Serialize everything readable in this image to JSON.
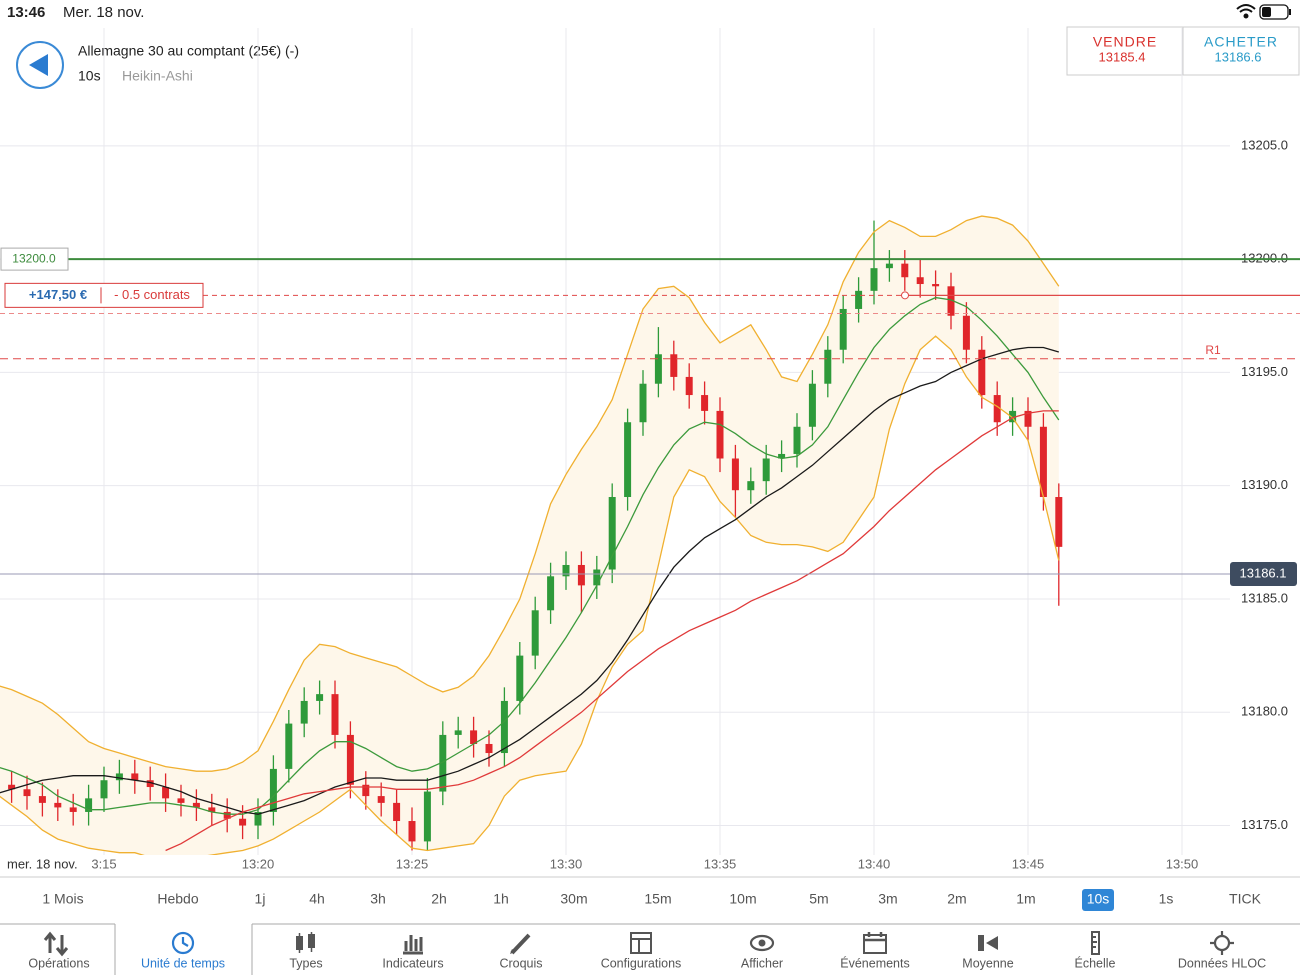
{
  "status_bar": {
    "time": "13:46",
    "date": "Mer. 18 nov."
  },
  "header": {
    "instrument": "Allemagne 30 au comptant (25€) (-)",
    "interval": "10s",
    "chart_style": "Heikin-Ashi"
  },
  "trade_buttons": {
    "sell": {
      "label": "VENDRE",
      "price": "13185.4"
    },
    "buy": {
      "label": "ACHETER",
      "price": "13186.6"
    }
  },
  "chart_data": {
    "type": "candlestick",
    "date_label": "mer. 18 nov.",
    "categories": [
      null,
      null,
      null,
      null,
      null,
      null,
      null,
      "3:15",
      null,
      null,
      null,
      null,
      null,
      null,
      null,
      null,
      null,
      "13:20",
      null,
      null,
      null,
      null,
      null,
      null,
      null,
      null,
      null,
      "13:25",
      null,
      null,
      null,
      null,
      null,
      null,
      null,
      null,
      null,
      "13:30",
      null,
      null,
      null,
      null,
      null,
      null,
      null,
      null,
      null,
      "13:35",
      null,
      null,
      null,
      null,
      null,
      null,
      null,
      null,
      null,
      "13:40",
      null,
      null,
      null,
      null,
      null,
      null,
      null,
      null,
      null,
      "13:45",
      null,
      null,
      null,
      null,
      null,
      null,
      null,
      null,
      null,
      "13:50",
      null,
      null
    ],
    "open": [
      13177.0,
      13176.8,
      13176.6,
      13176.3,
      13176.0,
      13175.8,
      13175.6,
      13176.2,
      13177.0,
      13177.3,
      13177.0,
      13176.7,
      13176.2,
      13176.0,
      13175.8,
      13175.6,
      13175.3,
      13175.0,
      13175.6,
      13177.5,
      13179.5,
      13180.5,
      13180.8,
      13179.0,
      13176.8,
      13176.3,
      13176.0,
      13175.2,
      13174.3,
      13176.5,
      13179.0,
      13179.2,
      13178.6,
      13178.2,
      13180.5,
      13182.5,
      13184.5,
      13186.0,
      13186.5,
      13185.6,
      13186.3,
      13189.5,
      13192.8,
      13194.5,
      13195.8,
      13194.8,
      13194.0,
      13193.3,
      13191.2,
      13189.8,
      13190.2,
      13191.2,
      13191.4,
      13192.6,
      13194.5,
      13196.0,
      13197.8,
      13198.6,
      13199.6,
      13199.8,
      13199.2,
      13198.9,
      13198.8,
      13197.5,
      13196.0,
      13194.0,
      13192.8,
      13193.3,
      13192.6,
      13189.5,
      null,
      null,
      null,
      null,
      null,
      null,
      null,
      null,
      null,
      null
    ],
    "high": [
      13177.6,
      13177.4,
      13177.2,
      13176.9,
      13176.6,
      13176.4,
      13176.8,
      13177.6,
      13177.9,
      13177.9,
      13177.6,
      13177.3,
      13176.8,
      13176.6,
      13176.4,
      13176.2,
      13175.9,
      13176.2,
      13178.1,
      13180.1,
      13181.1,
      13181.4,
      13181.4,
      13179.6,
      13177.4,
      13176.9,
      13176.6,
      13175.8,
      13177.1,
      13179.6,
      13179.8,
      13179.8,
      13179.2,
      13181.1,
      13183.1,
      13185.1,
      13186.6,
      13187.1,
      13187.1,
      13186.9,
      13190.1,
      13193.4,
      13195.1,
      13197.0,
      13196.4,
      13195.4,
      13194.6,
      13193.9,
      13191.8,
      13190.8,
      13191.8,
      13192.0,
      13193.2,
      13195.1,
      13196.6,
      13198.4,
      13199.2,
      13201.7,
      13200.4,
      13200.4,
      13200.0,
      13199.5,
      13199.4,
      13198.1,
      13196.6,
      13194.6,
      13193.9,
      13193.9,
      13193.2,
      13190.1,
      null,
      null,
      null,
      null,
      null,
      null,
      null,
      null,
      null,
      null
    ],
    "low": [
      13176.2,
      13176.0,
      13175.7,
      13175.4,
      13175.2,
      13175.0,
      13175.0,
      13175.6,
      13176.4,
      13176.4,
      13176.1,
      13175.6,
      13175.4,
      13175.2,
      13175.0,
      13174.7,
      13174.4,
      13174.4,
      13175.0,
      13176.9,
      13178.9,
      13179.9,
      13178.4,
      13176.2,
      13175.7,
      13175.4,
      13174.6,
      13173.9,
      13173.9,
      13175.9,
      13178.4,
      13178.0,
      13177.6,
      13177.6,
      13179.9,
      13181.9,
      13183.9,
      13185.4,
      13184.4,
      13185.0,
      13185.7,
      13188.9,
      13192.2,
      13193.9,
      13194.2,
      13193.4,
      13192.7,
      13190.6,
      13188.6,
      13189.2,
      13189.6,
      13190.6,
      13190.8,
      13192.0,
      13193.9,
      13195.4,
      13197.2,
      13198.0,
      13199.0,
      13198.6,
      13198.3,
      13198.2,
      13196.9,
      13195.4,
      13193.4,
      13192.2,
      13192.2,
      13192.0,
      13188.9,
      13184.7,
      null,
      null,
      null,
      null,
      null,
      null,
      null,
      null,
      null,
      null
    ],
    "close": [
      13176.8,
      13176.6,
      13176.3,
      13176.0,
      13175.8,
      13175.6,
      13176.2,
      13177.0,
      13177.3,
      13177.0,
      13176.7,
      13176.2,
      13176.0,
      13175.8,
      13175.6,
      13175.3,
      13175.0,
      13175.6,
      13177.5,
      13179.5,
      13180.5,
      13180.8,
      13179.0,
      13176.8,
      13176.3,
      13176.0,
      13175.2,
      13174.3,
      13176.5,
      13179.0,
      13179.2,
      13178.6,
      13178.2,
      13180.5,
      13182.5,
      13184.5,
      13186.0,
      13186.5,
      13185.6,
      13186.3,
      13189.5,
      13192.8,
      13194.5,
      13195.8,
      13194.8,
      13194.0,
      13193.3,
      13191.2,
      13189.8,
      13190.2,
      13191.2,
      13191.4,
      13192.6,
      13194.5,
      13196.0,
      13197.8,
      13198.6,
      13199.6,
      13199.8,
      13199.2,
      13198.9,
      13198.8,
      13197.5,
      13196.0,
      13194.0,
      13192.8,
      13193.3,
      13192.6,
      13189.5,
      13187.3,
      null,
      null,
      null,
      null,
      null,
      null,
      null,
      null,
      null,
      null
    ],
    "up_color": "#2e9a3a",
    "down_color": "#e0262b",
    "band_fill": "#fef7ea",
    "series": [
      {
        "color": "#f0b030",
        "values": [
          13181.2,
          13181.0,
          13180.7,
          13180.4,
          13179.9,
          13179.3,
          13178.7,
          13178.4,
          13178.2,
          13178.0,
          13177.8,
          13177.6,
          13177.5,
          13177.4,
          13177.4,
          13177.5,
          13177.8,
          13178.3,
          13179.6,
          13181.0,
          13182.3,
          13183.0,
          13182.9,
          13182.6,
          13182.4,
          13182.2,
          13182.0,
          13181.6,
          13181.2,
          13180.9,
          13181.1,
          13181.6,
          13182.5,
          13183.7,
          13185.0,
          13187.0,
          13189.2,
          13190.5,
          13191.6,
          13192.6,
          13193.8,
          13195.8,
          13197.8,
          13198.7,
          13198.8,
          13198.3,
          13197.2,
          13196.3,
          13196.7,
          13197.1,
          13196.0,
          13194.8,
          13194.6,
          13195.8,
          13197.1,
          13199.0,
          13200.3,
          13201.2,
          13201.7,
          13201.4,
          13201.0,
          13201.0,
          13201.3,
          13201.7,
          13201.9,
          13201.8,
          13201.5,
          13200.8,
          13199.8,
          13198.8,
          null,
          null,
          null,
          null,
          null,
          null,
          null,
          null,
          null,
          null
        ]
      },
      {
        "color": "#f0b030",
        "values": [
          13176.4,
          13175.9,
          13175.4,
          13174.8,
          13174.4,
          13174.2,
          13174.0,
          13173.9,
          13173.8,
          13173.8,
          13173.6,
          13173.5,
          13173.5,
          13173.6,
          13173.7,
          13173.8,
          13173.9,
          13174.1,
          13174.4,
          13174.8,
          13175.2,
          13175.6,
          13176.1,
          13176.6,
          13175.9,
          13175.2,
          13174.6,
          13174.0,
          13173.9,
          13174.0,
          13174.1,
          13174.2,
          13175.0,
          13176.3,
          13177.0,
          13177.2,
          13177.3,
          13177.4,
          13178.6,
          13180.5,
          13182.0,
          13183.0,
          13183.6,
          13186.5,
          13189.5,
          13190.7,
          13190.4,
          13189.3,
          13188.6,
          13187.8,
          13187.5,
          13187.4,
          13187.4,
          13187.3,
          13187.1,
          13187.5,
          13188.5,
          13189.5,
          13192.5,
          13194.5,
          13196.0,
          13196.6,
          13196.0,
          13194.8,
          13193.9,
          13193.5,
          13193.0,
          13192.0,
          13189.5,
          13186.7,
          null,
          null,
          null,
          null,
          null,
          null,
          null,
          null,
          null,
          null
        ]
      },
      {
        "color": "#3c9a3c",
        "values": [
          13177.6,
          13177.4,
          13177.1,
          13176.8,
          13176.3,
          13176.0,
          13175.7,
          13175.7,
          13175.8,
          13175.9,
          13176.0,
          13176.0,
          13175.9,
          13175.8,
          13175.6,
          13175.5,
          13175.5,
          13175.7,
          13176.3,
          13177.0,
          13177.7,
          13178.3,
          13178.7,
          13178.7,
          13178.4,
          13178.0,
          13177.6,
          13177.4,
          13177.5,
          13177.8,
          13178.2,
          13178.6,
          13179.0,
          13179.6,
          13180.4,
          13181.3,
          13182.3,
          13183.3,
          13184.4,
          13185.6,
          13186.9,
          13188.2,
          13189.6,
          13190.8,
          13191.8,
          13192.5,
          13192.8,
          13192.7,
          13192.3,
          13191.8,
          13191.4,
          13191.2,
          13191.3,
          13191.8,
          13192.6,
          13193.8,
          13195.0,
          13196.1,
          13196.9,
          13197.5,
          13198.0,
          13198.3,
          13198.2,
          13197.9,
          13197.3,
          13196.6,
          13195.8,
          13195.0,
          13193.9,
          13192.9,
          null,
          null,
          null,
          null,
          null,
          null,
          null,
          null,
          null,
          null
        ]
      },
      {
        "color": "#1a1a1a",
        "values": [
          13176.4,
          13176.6,
          13176.8,
          13177.0,
          13177.1,
          13177.2,
          13177.2,
          13177.2,
          13177.1,
          13177.0,
          13176.9,
          13176.7,
          13176.5,
          13176.2,
          13176.0,
          13175.8,
          13175.6,
          13175.5,
          13175.7,
          13175.9,
          13176.1,
          13176.4,
          13176.7,
          13176.9,
          13177.1,
          13177.1,
          13177.0,
          13177.0,
          13177.0,
          13177.2,
          13177.4,
          13177.7,
          13178.0,
          13178.4,
          13178.8,
          13179.3,
          13179.8,
          13180.3,
          13180.8,
          13181.4,
          13182.2,
          13183.2,
          13184.3,
          13185.4,
          13186.4,
          13187.1,
          13187.7,
          13188.1,
          13188.5,
          13189.0,
          13189.5,
          13189.9,
          13190.4,
          13190.9,
          13191.5,
          13192.1,
          13192.7,
          13193.3,
          13193.8,
          13194.1,
          13194.4,
          13194.6,
          13195.0,
          13195.3,
          13195.6,
          13195.8,
          13196.0,
          13196.1,
          13196.1,
          13195.9,
          null,
          null,
          null,
          null,
          null,
          null,
          null,
          null,
          null,
          null
        ]
      },
      {
        "color": "#e03a3a",
        "values": [
          null,
          null,
          null,
          null,
          null,
          null,
          null,
          null,
          null,
          null,
          null,
          13173.9,
          13174.2,
          13174.6,
          13175.0,
          13175.3,
          13175.6,
          13175.8,
          13176.0,
          13176.2,
          13176.4,
          13176.5,
          13176.6,
          13176.7,
          13176.7,
          13176.7,
          13176.6,
          13176.6,
          13176.6,
          13176.7,
          13176.8,
          13177.0,
          13177.3,
          13177.6,
          13178.0,
          13178.5,
          13179.0,
          13179.5,
          13180.0,
          13180.6,
          13181.2,
          13181.8,
          13182.3,
          13182.8,
          13183.2,
          13183.6,
          13183.9,
          13184.2,
          13184.5,
          13184.9,
          13185.2,
          13185.5,
          13185.8,
          13186.2,
          13186.6,
          13187.0,
          13187.6,
          13188.2,
          13188.9,
          13189.5,
          13190.1,
          13190.7,
          13191.2,
          13191.7,
          13192.2,
          13192.6,
          13193.0,
          13193.2,
          13193.3,
          13193.3,
          null,
          null,
          null,
          null,
          null,
          null,
          null,
          null,
          null,
          null
        ]
      }
    ],
    "ylim": [
      13173.7,
      13210.2
    ],
    "yticks": [
      {
        "value": 13175,
        "label": "13175.0"
      },
      {
        "value": 13180,
        "label": "13180.0"
      },
      {
        "value": 13185,
        "label": "13185.0"
      },
      {
        "value": 13190,
        "label": "13190.0"
      },
      {
        "value": 13195,
        "label": "13195.0"
      },
      {
        "value": 13200,
        "label": "13200.0"
      },
      {
        "value": 13205,
        "label": "13205.0"
      }
    ],
    "grid": true,
    "reference_level": {
      "value": 13200,
      "label": "13200.0",
      "color": "#3d8b3d"
    },
    "position": {
      "value": 13198.4,
      "pnl": "+147,50 €",
      "size": "- 0.5 contrats"
    },
    "order_level": 13197.6,
    "pivot": {
      "value": 13195.6,
      "label": "R1"
    },
    "last_price": 13186.1
  },
  "timeframes": {
    "items": [
      "1 Mois",
      "Hebdo",
      "1j",
      "4h",
      "3h",
      "2h",
      "1h",
      "30m",
      "15m",
      "10m",
      "5m",
      "3m",
      "2m",
      "1m",
      "10s",
      "1s",
      "TICK"
    ],
    "selected": 14
  },
  "toolbar": {
    "items": [
      "Opérations",
      "Unité de temps",
      "Types",
      "Indicateurs",
      "Croquis",
      "Configurations",
      "Afficher",
      "Événements",
      "Moyenne",
      "Échelle",
      "Données HLOC"
    ],
    "selected": 1
  }
}
